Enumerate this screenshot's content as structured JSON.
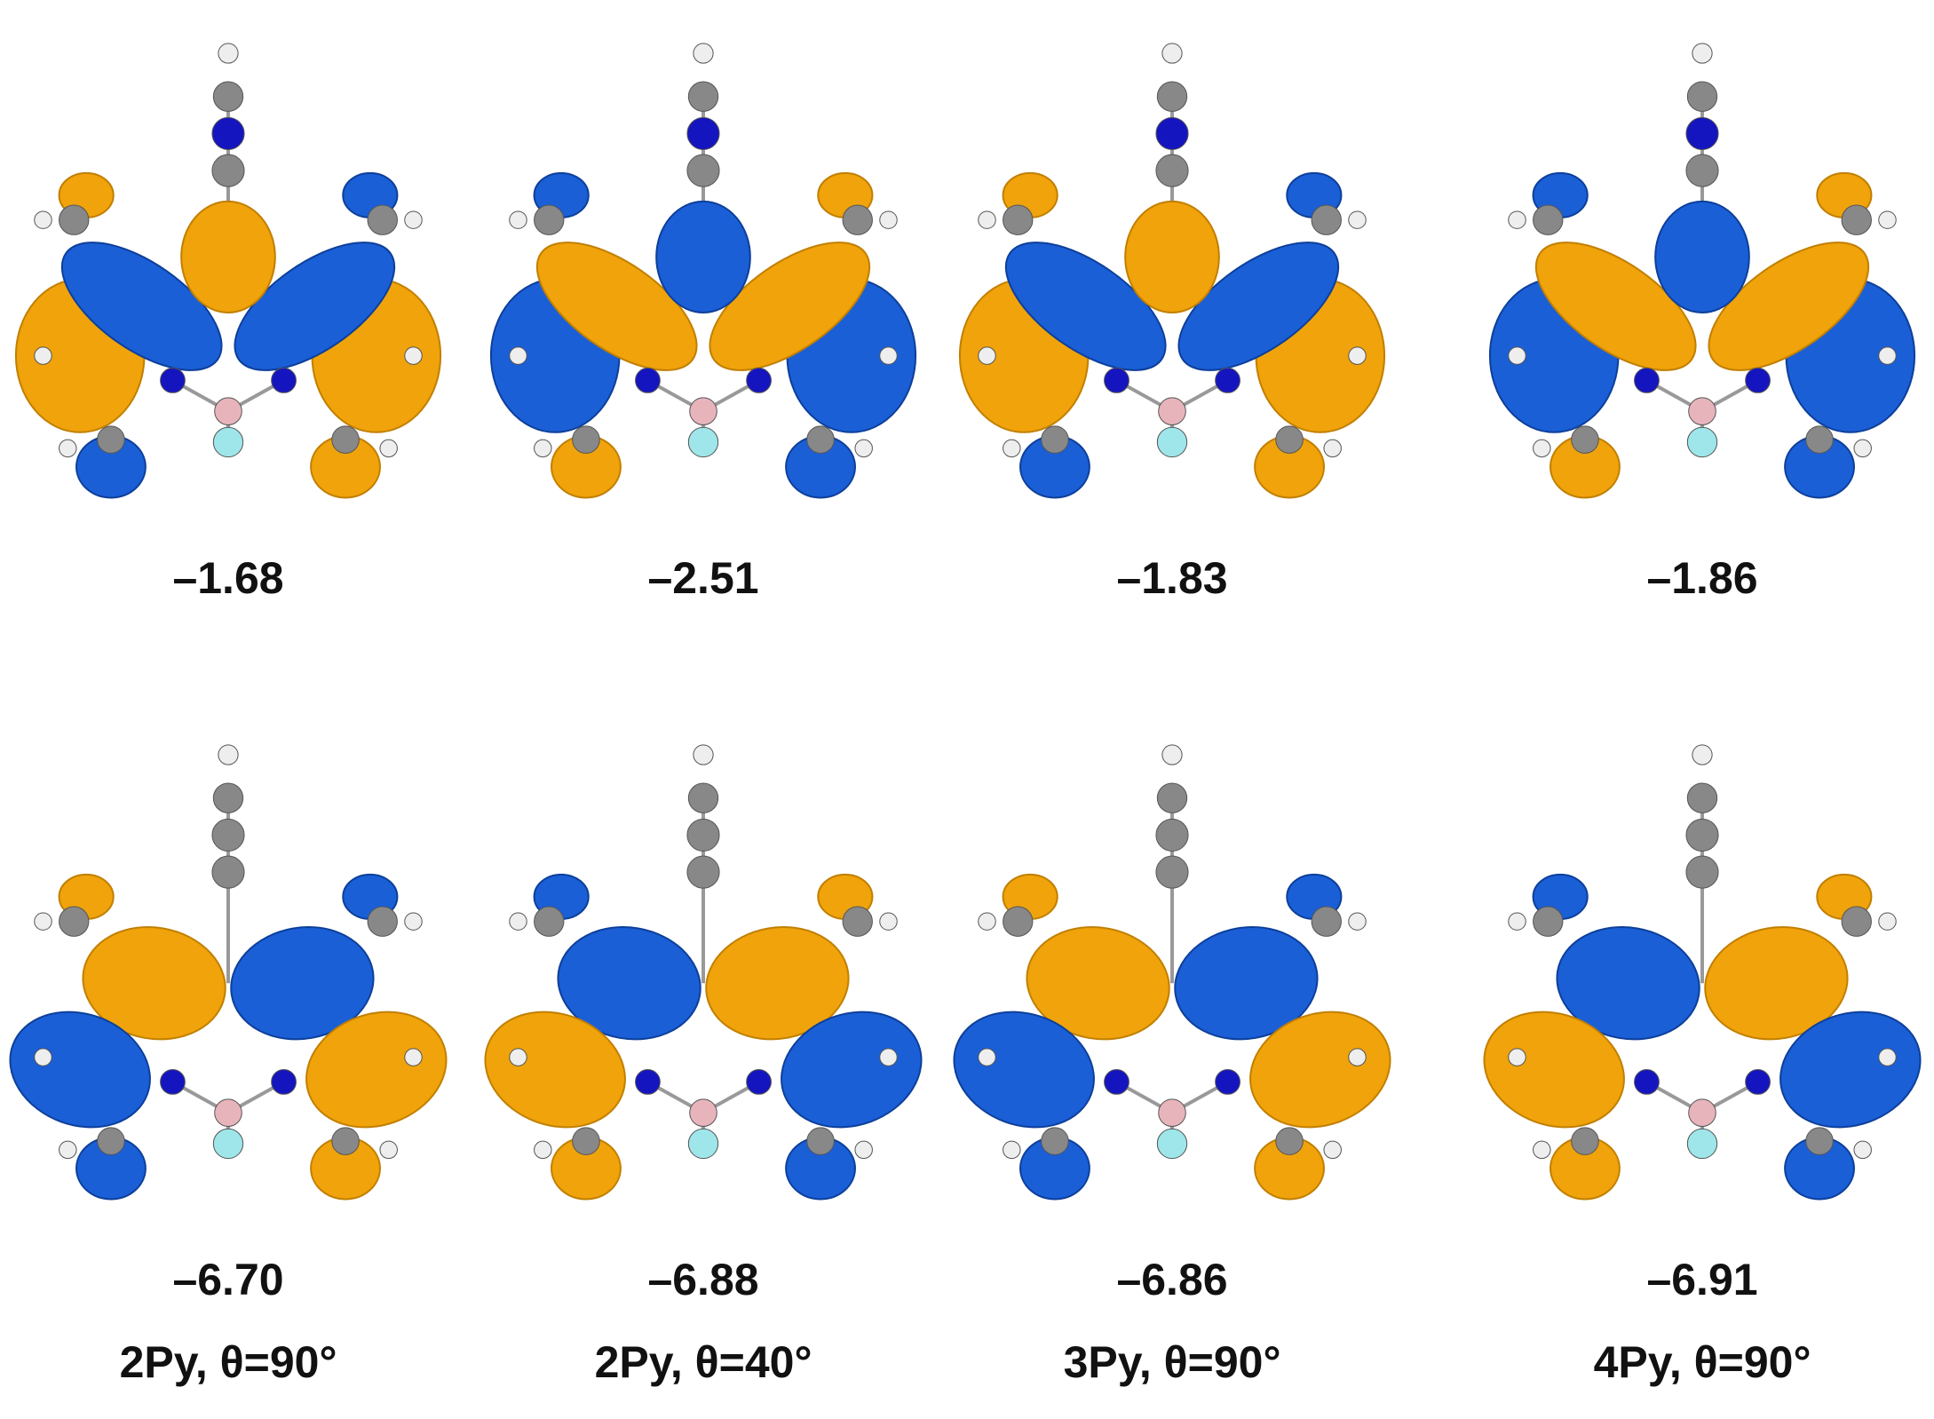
{
  "panels": [
    {
      "label": "2Py, θ=90°",
      "lumo": "–1.68",
      "homo": "–6.70"
    },
    {
      "label": "2Py, θ=40°",
      "lumo": "–2.51",
      "homo": "–6.88"
    },
    {
      "label": "3Py, θ=90°",
      "lumo": "–1.83",
      "homo": "–6.86"
    },
    {
      "label": "4Py, θ=90°",
      "lumo": "–1.86",
      "homo": "–6.91"
    }
  ]
}
